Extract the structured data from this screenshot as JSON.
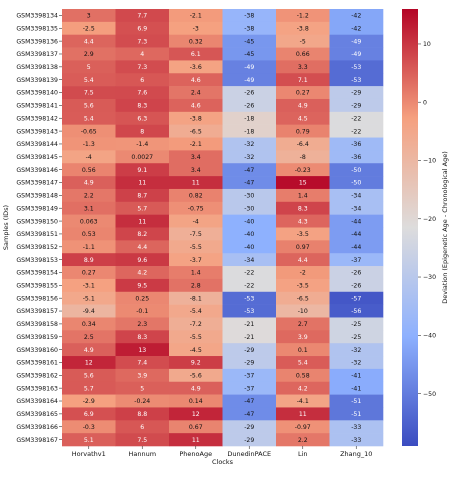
{
  "chart_data": {
    "type": "heatmap",
    "xlabel": "Clocks",
    "ylabel": "Samples (IDs)",
    "colorbar_label": "Deviation (Epigenetic Age - Chronological Age)",
    "colorbar_range": [
      -59,
      16
    ],
    "colorbar_ticks": [
      10,
      0,
      -10,
      -20,
      -30,
      -40,
      -50
    ],
    "colormap": "coolwarm",
    "columns": [
      "Horvathv1",
      "Hannum",
      "PhenoAge",
      "DunedinPACE",
      "Lin",
      "Zhang_10"
    ],
    "rows": [
      {
        "id": "GSM3398134",
        "values": [
          3,
          7.7,
          -2.1,
          -38,
          -1.2,
          -42
        ],
        "labels": [
          "3",
          "7.7",
          "-2.1",
          "-38",
          "-1.2",
          "-42"
        ]
      },
      {
        "id": "GSM3398135",
        "values": [
          -2.5,
          6.9,
          -3,
          -38,
          -3.8,
          -42
        ],
        "labels": [
          "-2.5",
          "6.9",
          "-3",
          "-38",
          "-3.8",
          "-42"
        ]
      },
      {
        "id": "GSM3398136",
        "values": [
          4.4,
          7.3,
          0.32,
          -45,
          -5,
          -49
        ],
        "labels": [
          "4.4",
          "7.3",
          "0.32",
          "-45",
          "-5",
          "-49"
        ]
      },
      {
        "id": "GSM3398137",
        "values": [
          2.9,
          4,
          6.1,
          -45,
          0.66,
          -49
        ],
        "labels": [
          "2.9",
          "4",
          "6.1",
          "-45",
          "0.66",
          "-49"
        ]
      },
      {
        "id": "GSM3398138",
        "values": [
          5,
          7.3,
          -3.6,
          -49,
          3.3,
          -53
        ],
        "labels": [
          "5",
          "7.3",
          "-3.6",
          "-49",
          "3.3",
          "-53"
        ]
      },
      {
        "id": "GSM3398139",
        "values": [
          5.4,
          6,
          4.6,
          -49,
          7.1,
          -53
        ],
        "labels": [
          "5.4",
          "6",
          "4.6",
          "-49",
          "7.1",
          "-53"
        ]
      },
      {
        "id": "GSM3398140",
        "values": [
          7.5,
          7.6,
          2.4,
          -26,
          0.27,
          -29
        ],
        "labels": [
          "7.5",
          "7.6",
          "2.4",
          "-26",
          "0.27",
          "-29"
        ]
      },
      {
        "id": "GSM3398141",
        "values": [
          5.6,
          8.3,
          4.6,
          -26,
          4.9,
          -29
        ],
        "labels": [
          "5.6",
          "8.3",
          "4.6",
          "-26",
          "4.9",
          "-29"
        ]
      },
      {
        "id": "GSM3398142",
        "values": [
          5.4,
          6.3,
          -3.8,
          -18,
          4.5,
          -22
        ],
        "labels": [
          "5.4",
          "6.3",
          "-3.8",
          "-18",
          "4.5",
          "-22"
        ]
      },
      {
        "id": "GSM3398143",
        "values": [
          -0.65,
          8,
          -6.5,
          -18,
          0.79,
          -22
        ],
        "labels": [
          "-0.65",
          "8",
          "-6.5",
          "-18",
          "0.79",
          "-22"
        ]
      },
      {
        "id": "GSM3398144",
        "values": [
          -1.3,
          -1.4,
          -2.1,
          -32,
          -6.4,
          -36
        ],
        "labels": [
          "-1.3",
          "-1.4",
          "-2.1",
          "-32",
          "-6.4",
          "-36"
        ]
      },
      {
        "id": "GSM3398145",
        "values": [
          -4,
          0.0027,
          3.4,
          -32,
          -8,
          -36
        ],
        "labels": [
          "-4",
          "0.0027",
          "3.4",
          "-32",
          "-8",
          "-36"
        ]
      },
      {
        "id": "GSM3398146",
        "values": [
          0.56,
          9.1,
          3.4,
          -47,
          -0.23,
          -50
        ],
        "labels": [
          "0.56",
          "9.1",
          "3.4",
          "-47",
          "-0.23",
          "-50"
        ]
      },
      {
        "id": "GSM3398147",
        "values": [
          4.9,
          11,
          11,
          -47,
          15,
          -50
        ],
        "labels": [
          "4.9",
          "11",
          "11",
          "-47",
          "15",
          "-50"
        ]
      },
      {
        "id": "GSM3398148",
        "values": [
          2.2,
          8.7,
          0.82,
          -30,
          1.4,
          -34
        ],
        "labels": [
          "2.2",
          "8.7",
          "0.82",
          "-30",
          "1.4",
          "-34"
        ]
      },
      {
        "id": "GSM3398149",
        "values": [
          3.1,
          5.7,
          -0.75,
          -30,
          8.3,
          -34
        ],
        "labels": [
          "3.1",
          "5.7",
          "-0.75",
          "-30",
          "8.3",
          "-34"
        ]
      },
      {
        "id": "GSM3398150",
        "values": [
          0.063,
          11,
          -4,
          -40,
          4.3,
          -44
        ],
        "labels": [
          "0.063",
          "11",
          "-4",
          "-40",
          "4.3",
          "-44"
        ]
      },
      {
        "id": "GSM3398151",
        "values": [
          0.53,
          8.2,
          -7.5,
          -40,
          -3.5,
          -44
        ],
        "labels": [
          "0.53",
          "8.2",
          "-7.5",
          "-40",
          "-3.5",
          "-44"
        ]
      },
      {
        "id": "GSM3398152",
        "values": [
          -1.1,
          4.4,
          -5.5,
          -40,
          0.97,
          -44
        ],
        "labels": [
          "-1.1",
          "4.4",
          "-5.5",
          "-40",
          "0.97",
          "-44"
        ]
      },
      {
        "id": "GSM3398153",
        "values": [
          8.9,
          9.6,
          -3.7,
          -34,
          4.4,
          -37
        ],
        "labels": [
          "8.9",
          "9.6",
          "-3.7",
          "-34",
          "4.4",
          "-37"
        ]
      },
      {
        "id": "GSM3398154",
        "values": [
          0.27,
          4.2,
          1.4,
          -22,
          -2,
          -26
        ],
        "labels": [
          "0.27",
          "4.2",
          "1.4",
          "-22",
          "-2",
          "-26"
        ]
      },
      {
        "id": "GSM3398155",
        "values": [
          -3.1,
          9.5,
          2.8,
          -22,
          -3.5,
          -26
        ],
        "labels": [
          "-3.1",
          "9.5",
          "2.8",
          "-22",
          "-3.5",
          "-26"
        ]
      },
      {
        "id": "GSM3398156",
        "values": [
          -5.1,
          0.25,
          -8.1,
          -53,
          -6.5,
          -57
        ],
        "labels": [
          "-5.1",
          "0.25",
          "-8.1",
          "-53",
          "-6.5",
          "-57"
        ]
      },
      {
        "id": "GSM3398157",
        "values": [
          -9.4,
          -0.1,
          -5.4,
          -53,
          -10,
          -56
        ],
        "labels": [
          "-9.4",
          "-0.1",
          "-5.4",
          "-53",
          "-10",
          "-56"
        ]
      },
      {
        "id": "GSM3398158",
        "values": [
          0.34,
          2.3,
          -7.2,
          -21,
          2.7,
          -25
        ],
        "labels": [
          "0.34",
          "2.3",
          "-7.2",
          "-21",
          "2.7",
          "-25"
        ]
      },
      {
        "id": "GSM3398159",
        "values": [
          2.5,
          8.3,
          -5.5,
          -21,
          3.9,
          -25
        ],
        "labels": [
          "2.5",
          "8.3",
          "-5.5",
          "-21",
          "3.9",
          "-25"
        ]
      },
      {
        "id": "GSM3398160",
        "values": [
          4.9,
          13,
          -4.5,
          -29,
          0.1,
          -32
        ],
        "labels": [
          "4.9",
          "13",
          "-4.5",
          "-29",
          "0.1",
          "-32"
        ]
      },
      {
        "id": "GSM3398161",
        "values": [
          12,
          7.4,
          9.2,
          -29,
          5.4,
          -32
        ],
        "labels": [
          "12",
          "7.4",
          "9.2",
          "-29",
          "5.4",
          "-32"
        ]
      },
      {
        "id": "GSM3398162",
        "values": [
          5.6,
          3.9,
          -5.6,
          -37,
          0.58,
          -41
        ],
        "labels": [
          "5.6",
          "3.9",
          "-5.6",
          "-37",
          "0.58",
          "-41"
        ]
      },
      {
        "id": "GSM3398163",
        "values": [
          5.7,
          5,
          4.9,
          -37,
          4.2,
          -41
        ],
        "labels": [
          "5.7",
          "5",
          "4.9",
          "-37",
          "4.2",
          "-41"
        ]
      },
      {
        "id": "GSM3398164",
        "values": [
          -2.9,
          -0.24,
          0.14,
          -47,
          -4.1,
          -51
        ],
        "labels": [
          "-2.9",
          "-0.24",
          "0.14",
          "-47",
          "-4.1",
          "-51"
        ]
      },
      {
        "id": "GSM3398165",
        "values": [
          6.9,
          8.8,
          12,
          -47,
          11,
          -51
        ],
        "labels": [
          "6.9",
          "8.8",
          "12",
          "-47",
          "11",
          "-51"
        ]
      },
      {
        "id": "GSM3398166",
        "values": [
          -0.3,
          6,
          0.67,
          -29,
          -0.97,
          -33
        ],
        "labels": [
          "-0.3",
          "6",
          "0.67",
          "-29",
          "-0.97",
          "-33"
        ]
      },
      {
        "id": "GSM3398167",
        "values": [
          5.1,
          7.5,
          11,
          -29,
          2.2,
          -33
        ],
        "labels": [
          "5.1",
          "7.5",
          "11",
          "-29",
          "2.2",
          "-33"
        ]
      }
    ]
  }
}
